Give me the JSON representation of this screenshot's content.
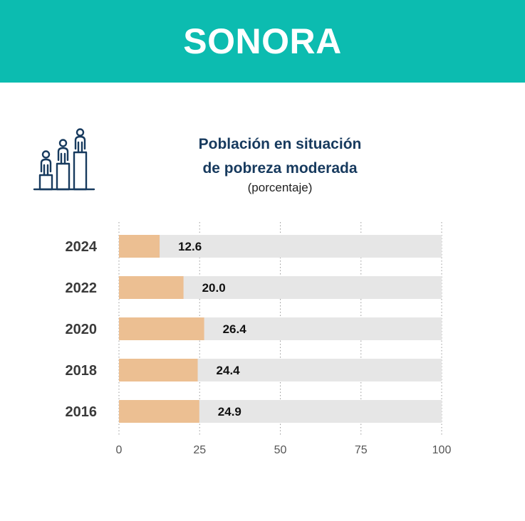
{
  "header": {
    "title": "SONORA"
  },
  "icon": {
    "name": "population-podium-icon"
  },
  "colors": {
    "header_bg": "#0cbcb0",
    "bar": "#ecbf92",
    "track": "#e6e6e6",
    "title": "#173a5e"
  },
  "chart_data": {
    "type": "bar",
    "orientation": "horizontal",
    "title_lines": [
      "Población en situación",
      "de pobreza moderada"
    ],
    "subtitle": "(porcentaje)",
    "categories": [
      "2024",
      "2022",
      "2020",
      "2018",
      "2016"
    ],
    "values": [
      12.6,
      20.0,
      26.4,
      24.4,
      24.9
    ],
    "value_labels": [
      "12.6",
      "20.0",
      "26.4",
      "24.4",
      "24.9"
    ],
    "xlim": [
      0,
      100
    ],
    "xticks": [
      0,
      25,
      50,
      75,
      100
    ],
    "xtick_labels": [
      "0",
      "25",
      "50",
      "75",
      "100"
    ],
    "grid": "vertical dotted",
    "background_track": 100
  }
}
